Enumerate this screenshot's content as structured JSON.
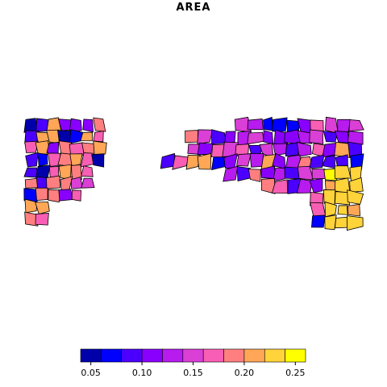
{
  "title": "AREA",
  "legend": {
    "colors": [
      "#0000AA",
      "#0000FF",
      "#4B00FF",
      "#8A00FF",
      "#B71BEE",
      "#DA3FD6",
      "#F85EB4",
      "#FF7F80",
      "#FFA757",
      "#FFD33A",
      "#FFFF00"
    ],
    "tick_values": [
      "0.05",
      "0.10",
      "0.15",
      "0.20",
      "0.25"
    ],
    "range": [
      0.04,
      0.26
    ]
  },
  "palette_note_colors": {
    "low": "#0000AA",
    "high": "#FFFF00",
    "outline": "#000000"
  }
}
